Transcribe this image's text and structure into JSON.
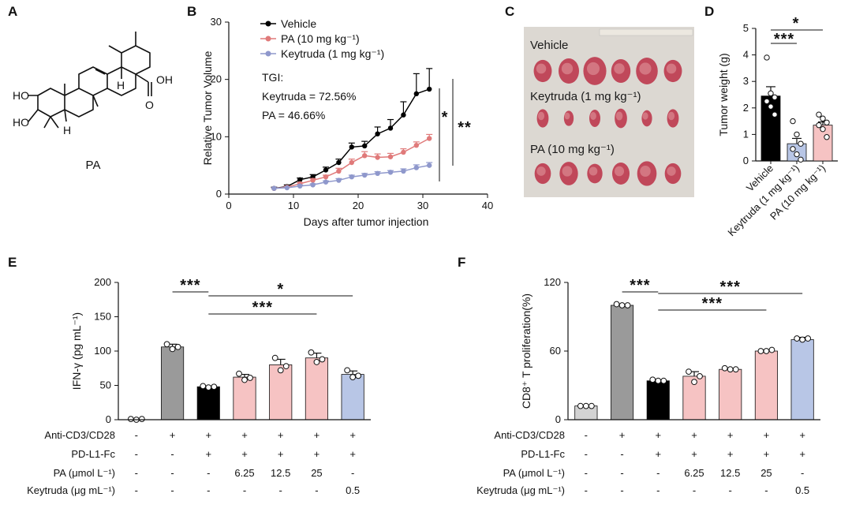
{
  "figure": {
    "panels": [
      "A",
      "B",
      "C",
      "D",
      "E",
      "F"
    ],
    "compound_label": "PA",
    "structure_atoms": {
      "ho_top": "HO",
      "ho_bottom": "HO",
      "h_upper": "H",
      "h_lower": "H",
      "oh": "OH",
      "o": "O"
    }
  },
  "photo": {
    "labels": [
      "Vehicle",
      "Keytruda (1 mg kg⁻¹)",
      "PA (10 mg kg⁻¹)"
    ]
  },
  "colors": {
    "vehicle": "#000000",
    "pa": "#e07a7a",
    "keytruda": "#8f98cc",
    "vehicle_bar": "#000000",
    "pa_bar": "#f6c3c3",
    "keytruda_bar": "#b8c6e6",
    "gray_bar": "#9a9a9a",
    "light_gray_bar": "#d3d3d3"
  },
  "chart_data": [
    {
      "panel": "B",
      "type": "line",
      "xlabel": "Days after tumor injection",
      "ylabel": "Relative Tumor Volume",
      "xlim": [
        0,
        40
      ],
      "ylim": [
        0,
        30
      ],
      "xticks": [
        0,
        10,
        20,
        30,
        40
      ],
      "yticks": [
        0,
        10,
        20,
        30
      ],
      "legend_position": "top",
      "annotation": [
        "TGI:",
        "Keytruda = 72.56%",
        "PA = 46.66%"
      ],
      "significance": [
        "*",
        "**"
      ],
      "series": [
        {
          "name": "Vehicle",
          "x": [
            7,
            9,
            11,
            13,
            15,
            17,
            19,
            21,
            23,
            25,
            27,
            29,
            31
          ],
          "y": [
            1.0,
            1.3,
            2.5,
            3.0,
            4.2,
            5.5,
            8.2,
            8.4,
            10.5,
            11.5,
            13.8,
            17.5,
            18.3
          ],
          "err": [
            0.2,
            0.3,
            0.3,
            0.4,
            0.5,
            0.6,
            0.7,
            0.8,
            1.2,
            1.5,
            2.3,
            3.5,
            3.6
          ]
        },
        {
          "name": "PA (10 mg kg⁻¹)",
          "x": [
            7,
            9,
            11,
            13,
            15,
            17,
            19,
            21,
            23,
            25,
            27,
            29,
            31
          ],
          "y": [
            1.0,
            1.2,
            1.8,
            2.4,
            3.0,
            4.0,
            5.5,
            6.7,
            6.4,
            6.5,
            7.3,
            8.5,
            9.7
          ],
          "err": [
            0.1,
            0.2,
            0.2,
            0.3,
            0.3,
            0.5,
            0.6,
            0.7,
            0.6,
            0.6,
            0.6,
            0.6,
            0.7
          ]
        },
        {
          "name": "Keytruda (1 mg kg⁻¹)",
          "x": [
            7,
            9,
            11,
            13,
            15,
            17,
            19,
            21,
            23,
            25,
            27,
            29,
            31
          ],
          "y": [
            1.0,
            1.1,
            1.4,
            1.6,
            2.1,
            2.4,
            3.0,
            3.3,
            3.6,
            3.8,
            4.0,
            4.6,
            5.0
          ],
          "err": [
            0.1,
            0.1,
            0.2,
            0.2,
            0.2,
            0.3,
            0.3,
            0.3,
            0.3,
            0.3,
            0.4,
            0.5,
            0.5
          ]
        }
      ]
    },
    {
      "panel": "D",
      "type": "bar",
      "ylabel": "Tumor weight (g)",
      "ylim": [
        0,
        5
      ],
      "yticks": [
        0,
        1,
        2,
        3,
        4,
        5
      ],
      "categories": [
        "Vehicle",
        "Keytruda (1 mg kg⁻¹)",
        "PA (10 mg kg⁻¹)"
      ],
      "values": [
        2.45,
        0.65,
        1.35
      ],
      "err": [
        0.35,
        0.2,
        0.12
      ],
      "points": [
        [
          3.9,
          2.55,
          2.4,
          2.25,
          2.05,
          1.75
        ],
        [
          1.5,
          1.0,
          0.65,
          0.45,
          0.25,
          0.05
        ],
        [
          1.75,
          1.6,
          1.45,
          1.35,
          1.2,
          0.9
        ]
      ],
      "significance": [
        "***",
        "*"
      ]
    },
    {
      "panel": "E",
      "type": "bar",
      "ylabel": "IFN-γ (pg mL⁻¹)",
      "ylim": [
        0,
        200
      ],
      "yticks": [
        0,
        50,
        100,
        150,
        200
      ],
      "values": [
        0,
        106,
        48,
        62,
        80,
        90,
        66
      ],
      "err": [
        0,
        4,
        1,
        4,
        8,
        7,
        5
      ],
      "points": [
        [
          1,
          0,
          1
        ],
        [
          110,
          103,
          106
        ],
        [
          49,
          47,
          48
        ],
        [
          67,
          58,
          61
        ],
        [
          90,
          72,
          78
        ],
        [
          98,
          84,
          88
        ],
        [
          72,
          62,
          64
        ]
      ],
      "significance": [
        "***",
        "*",
        "***"
      ],
      "conditions": {
        "labels": [
          "Anti-CD3/CD28",
          "PD-L1-Fc",
          "PA (μmol L⁻¹)",
          "Keytruda (μg mL⁻¹)"
        ],
        "rows": [
          [
            "-",
            "+",
            "+",
            "+",
            "+",
            "+",
            "+"
          ],
          [
            "-",
            "-",
            "+",
            "+",
            "+",
            "+",
            "+"
          ],
          [
            "-",
            "-",
            "-",
            "6.25",
            "12.5",
            "25",
            "-"
          ],
          [
            "-",
            "-",
            "-",
            "-",
            "-",
            "-",
            "0.5"
          ]
        ]
      }
    },
    {
      "panel": "F",
      "type": "bar",
      "ylabel": "CD8⁺ T proliferation(%)",
      "ylim": [
        0,
        120
      ],
      "yticks": [
        0,
        60,
        120
      ],
      "values": [
        12,
        100,
        34,
        38,
        44,
        60,
        70
      ],
      "err": [
        0.5,
        0.5,
        1,
        4,
        1,
        1,
        2
      ],
      "points": [
        [
          12,
          12,
          12
        ],
        [
          101,
          100,
          100
        ],
        [
          35,
          34,
          34
        ],
        [
          42,
          33,
          38
        ],
        [
          45,
          44,
          44
        ],
        [
          60,
          60,
          61
        ],
        [
          71,
          70,
          71
        ]
      ],
      "significance": [
        "***",
        "***",
        "***"
      ],
      "conditions": {
        "labels": [
          "Anti-CD3/CD28",
          "PD-L1-Fc",
          "PA (μmol L⁻¹)",
          "Keytruda (μg mL⁻¹)"
        ],
        "rows": [
          [
            "-",
            "+",
            "+",
            "+",
            "+",
            "+",
            "+"
          ],
          [
            "-",
            "-",
            "+",
            "+",
            "+",
            "+",
            "+"
          ],
          [
            "-",
            "-",
            "-",
            "6.25",
            "12.5",
            "25",
            "-"
          ],
          [
            "-",
            "-",
            "-",
            "-",
            "-",
            "-",
            "0.5"
          ]
        ]
      }
    }
  ]
}
